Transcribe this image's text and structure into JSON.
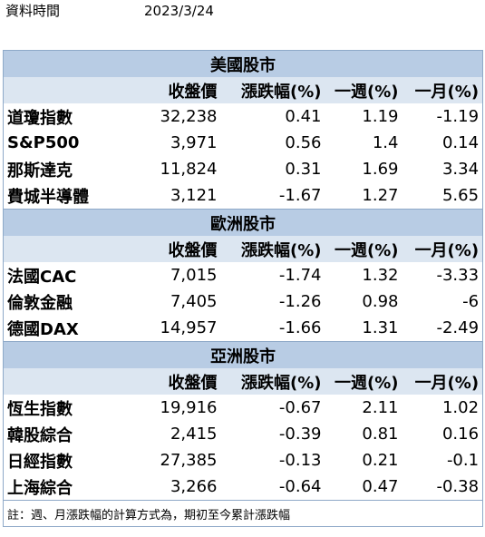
{
  "header": {
    "label": "資料時間",
    "date": "2023/3/24"
  },
  "sections": [
    {
      "title": "美國股市",
      "columns": [
        "收盤價",
        "漲跌幅(%)",
        "一週(%)",
        "一月(%)"
      ],
      "rows": [
        [
          "道瓊指數",
          "32,238",
          "0.41",
          "1.19",
          "-1.19"
        ],
        [
          "S&P500",
          "3,971",
          "0.56",
          "1.4",
          "0.14"
        ],
        [
          "那斯達克",
          "11,824",
          "0.31",
          "1.69",
          "3.34"
        ],
        [
          "費城半導體",
          "3,121",
          "-1.67",
          "1.27",
          "5.65"
        ]
      ]
    },
    {
      "title": "歐洲股市",
      "columns": [
        "收盤價",
        "漲跌幅(%)",
        "一週(%)",
        "一月(%)"
      ],
      "rows": [
        [
          "法國CAC",
          "7,015",
          "-1.74",
          "1.32",
          "-3.33"
        ],
        [
          "倫敦金融",
          "7,405",
          "-1.26",
          "0.98",
          "-6"
        ],
        [
          "德國DAX",
          "14,957",
          "-1.66",
          "1.31",
          "-2.49"
        ]
      ]
    },
    {
      "title": "亞洲股市",
      "columns": [
        "收盤價",
        "漲跌幅(%)",
        "一週(%)",
        "一月(%)"
      ],
      "rows": [
        [
          "恆生指數",
          "19,916",
          "-0.67",
          "2.11",
          "1.02"
        ],
        [
          "韓股綜合",
          "2,415",
          "-0.39",
          "0.81",
          "0.16"
        ],
        [
          "日經指數",
          "27,385",
          "-0.13",
          "0.21",
          "-0.1"
        ],
        [
          "上海綜合",
          "3,266",
          "-0.64",
          "0.47",
          "-0.38"
        ]
      ]
    }
  ],
  "note": "註：週、月漲跌幅的計算方式為，期初至今累計漲跌幅"
}
